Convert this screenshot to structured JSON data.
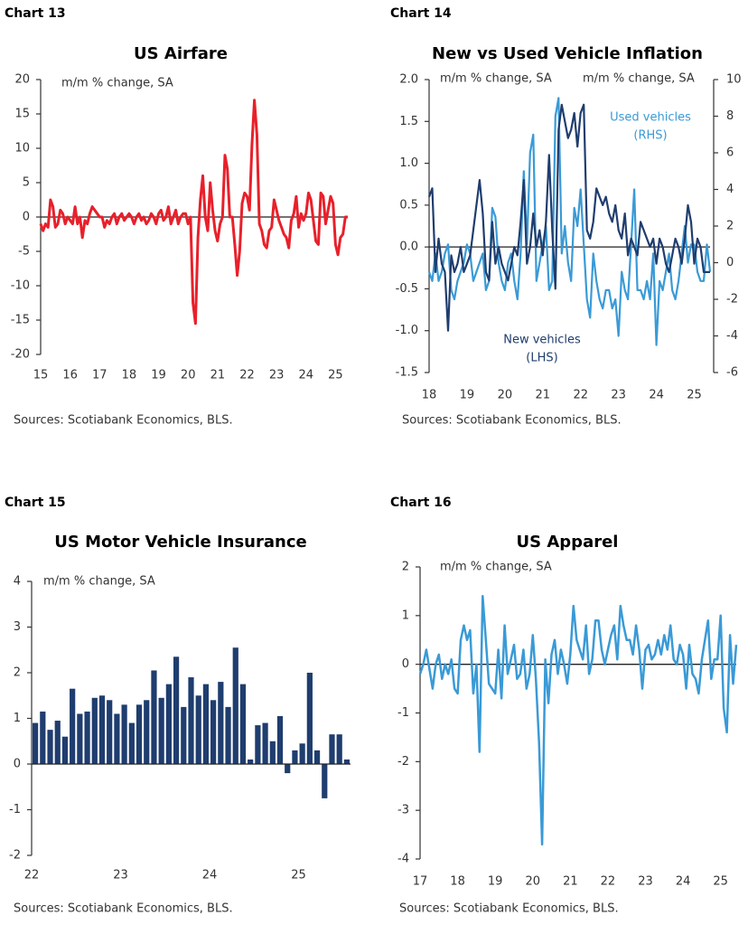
{
  "chart_data": [
    {
      "type": "line",
      "chart_label": "Chart 13",
      "title": "US Airfare",
      "y_label": "m/m % change, SA",
      "source": "Sources: Scotiabank Economics, BLS.",
      "color": "#e8202a",
      "ylim": [
        -20,
        20
      ],
      "yticks": [
        -20,
        -15,
        -10,
        -5,
        0,
        5,
        10,
        15,
        20
      ],
      "categories": [
        "15",
        null,
        null,
        null,
        null,
        null,
        null,
        null,
        null,
        null,
        null,
        null,
        "16",
        null,
        null,
        null,
        null,
        null,
        null,
        null,
        null,
        null,
        null,
        null,
        "17",
        null,
        null,
        null,
        null,
        null,
        null,
        null,
        null,
        null,
        null,
        null,
        "18",
        null,
        null,
        null,
        null,
        null,
        null,
        null,
        null,
        null,
        null,
        null,
        "19",
        null,
        null,
        null,
        null,
        null,
        null,
        null,
        null,
        null,
        null,
        null,
        "20",
        null,
        null,
        null,
        null,
        null,
        null,
        null,
        null,
        null,
        null,
        null,
        "21",
        null,
        null,
        null,
        null,
        null,
        null,
        null,
        null,
        null,
        null,
        null,
        "22",
        null,
        null,
        null,
        null,
        null,
        null,
        null,
        null,
        null,
        null,
        null,
        "23",
        null,
        null,
        null,
        null,
        null,
        null,
        null,
        null,
        null,
        null,
        null,
        "24",
        null,
        null,
        null,
        null,
        null,
        null,
        null,
        null,
        null,
        null,
        null,
        "25",
        null,
        null,
        null,
        null,
        null
      ],
      "values": [
        -1,
        -2,
        -1,
        -1.5,
        2.5,
        1.5,
        -1.5,
        -1,
        1,
        0.5,
        -1,
        0,
        -0.5,
        -1,
        1.5,
        -1,
        0,
        -3,
        -0.5,
        -1,
        0.5,
        1.5,
        1,
        0.5,
        0,
        0,
        -1.5,
        -0.5,
        -1,
        0,
        0.5,
        -1,
        0,
        0.5,
        -0.5,
        0,
        0.5,
        0,
        -1,
        0,
        0.5,
        -0.5,
        0,
        -1,
        -0.5,
        0.5,
        0,
        -1,
        0.5,
        1,
        -0.5,
        0,
        1.5,
        -1,
        0,
        1,
        -1,
        0,
        0.5,
        0.5,
        -1,
        0,
        -12.5,
        -15.5,
        -3,
        2.5,
        6,
        0,
        -2,
        5,
        1,
        -2,
        -3.5,
        -1,
        0,
        9,
        7,
        0,
        0,
        -4,
        -8.5,
        -5,
        2,
        3.5,
        3,
        1,
        10.5,
        17,
        12,
        -1,
        -2,
        -4,
        -4.5,
        -2,
        -1.5,
        2.5,
        1,
        -0.5,
        -1.5,
        -2.5,
        -3,
        -4.5,
        -0.5,
        0.5,
        3,
        -1.5,
        0.5,
        -0.5,
        0.5,
        3.5,
        2.5,
        -0.5,
        -3.5,
        -4,
        3.5,
        3,
        -1,
        1,
        3,
        2,
        -4,
        -5.5,
        -3,
        -2.5,
        0,
        0
      ]
    },
    {
      "type": "line",
      "chart_label": "Chart 14",
      "title": "New vs Used Vehicle Inflation",
      "y_label": "m/m % change, SA",
      "y2_label": "m/m % change, SA",
      "source": "Sources: Scotiabank Economics, BLS.",
      "ylim": [
        -1.5,
        2
      ],
      "yticks": [
        -1.5,
        -0.5,
        {
          "value": -1,
          "label": "-1.0"
        },
        {
          "value": 0,
          "label": "0.0"
        },
        0.5,
        {
          "value": 1,
          "label": "1.0"
        },
        1.5,
        {
          "value": 2,
          "label": "2.0"
        }
      ],
      "y2lim": [
        -6,
        10
      ],
      "y2ticks": [
        -6,
        -4,
        -2,
        0,
        2,
        4,
        6,
        8,
        10
      ],
      "categories": [
        "18",
        null,
        null,
        null,
        null,
        null,
        null,
        null,
        null,
        null,
        null,
        null,
        "19",
        null,
        null,
        null,
        null,
        null,
        null,
        null,
        null,
        null,
        null,
        null,
        "20",
        null,
        null,
        null,
        null,
        null,
        null,
        null,
        null,
        null,
        null,
        null,
        "21",
        null,
        null,
        null,
        null,
        null,
        null,
        null,
        null,
        null,
        null,
        null,
        "22",
        null,
        null,
        null,
        null,
        null,
        null,
        null,
        null,
        null,
        null,
        null,
        "23",
        null,
        null,
        null,
        null,
        null,
        null,
        null,
        null,
        null,
        null,
        null,
        "24",
        null,
        null,
        null,
        null,
        null,
        null,
        null,
        null,
        null,
        null,
        null,
        "25",
        null,
        null,
        null,
        null,
        null
      ],
      "series": [
        {
          "name": "Used vehicles",
          "axis_note": "(RHS)",
          "axis": "y2",
          "color": "#3a9ad6",
          "values": [
            -0.5,
            -1,
            0.5,
            -1,
            -0.5,
            0.5,
            1,
            -1.5,
            -2,
            -1,
            -0.5,
            0,
            1,
            0.5,
            -1,
            -0.5,
            0,
            0.5,
            -1.5,
            -1,
            3,
            2.5,
            0,
            -1,
            -1.5,
            0,
            0.5,
            -1,
            -2,
            0.5,
            5,
            1,
            6,
            7,
            -1,
            0,
            1,
            2,
            -1.5,
            -1,
            8,
            9,
            0.5,
            2,
            0,
            -1,
            3,
            2,
            4,
            1,
            -2,
            -3,
            0.5,
            -1,
            -2,
            -2.5,
            -1.5,
            -1.5,
            -2.5,
            -2,
            -4,
            -0.5,
            -1.5,
            -2,
            1,
            4,
            -1.5,
            -1.5,
            -2,
            -1,
            -2,
            0.5,
            -4.5,
            -1,
            -1.5,
            -0.5,
            0.5,
            -1.5,
            -2,
            -1,
            0.5,
            2,
            0,
            1,
            1,
            -0.5,
            -1,
            -1,
            1,
            -0.5
          ]
        },
        {
          "name": "New vehicles",
          "axis_note": "(LHS)",
          "color": "#1f3d6e",
          "values": [
            0.6,
            0.7,
            -0.3,
            0.1,
            -0.2,
            -0.3,
            -1,
            -0.1,
            -0.3,
            -0.2,
            0,
            -0.3,
            -0.2,
            -0.1,
            0.2,
            0.5,
            0.8,
            0.4,
            -0.3,
            -0.4,
            0.3,
            -0.2,
            0,
            -0.2,
            -0.3,
            -0.4,
            -0.2,
            0,
            -0.1,
            0.3,
            0.8,
            -0.2,
            0,
            0.4,
            0,
            0.2,
            -0.1,
            0.3,
            1.1,
            0.2,
            -0.5,
            1.4,
            1.7,
            1.5,
            1.3,
            1.4,
            1.6,
            1.2,
            1.6,
            1.7,
            0.2,
            0.1,
            0.3,
            0.7,
            0.6,
            0.5,
            0.6,
            0.4,
            0.3,
            0.5,
            0.2,
            0.1,
            0.4,
            -0.1,
            0.1,
            0,
            -0.1,
            0.3,
            0.2,
            0.1,
            0,
            0.1,
            -0.2,
            0.1,
            0,
            -0.2,
            -0.3,
            -0.1,
            0.1,
            0,
            -0.2,
            0.1,
            0.5,
            0.3,
            -0.2,
            0.1,
            0,
            -0.3,
            -0.3,
            -0.3
          ]
        }
      ]
    },
    {
      "type": "bar",
      "chart_label": "Chart 15",
      "title": "US Motor Vehicle Insurance",
      "y_label": "m/m % change, SA",
      "source": "Sources: Scotiabank Economics, BLS.",
      "color": "#1f3d6e",
      "ylim": [
        -2,
        4
      ],
      "yticks": [
        -2,
        -1,
        0,
        1,
        2,
        3,
        4
      ],
      "categories": [
        "22",
        null,
        null,
        null,
        null,
        null,
        null,
        null,
        null,
        null,
        null,
        null,
        "23",
        null,
        null,
        null,
        null,
        null,
        null,
        null,
        null,
        null,
        null,
        null,
        "24",
        null,
        null,
        null,
        null,
        null,
        null,
        null,
        null,
        null,
        null,
        null,
        "25",
        null,
        null,
        null,
        null,
        null,
        null
      ],
      "values": [
        0.9,
        1.15,
        0.75,
        0.95,
        0.6,
        1.65,
        1.1,
        1.15,
        1.45,
        1.5,
        1.4,
        1.1,
        1.3,
        0.9,
        1.3,
        1.4,
        2.05,
        1.45,
        1.75,
        2.35,
        1.25,
        1.9,
        1.5,
        1.75,
        1.4,
        1.8,
        1.25,
        2.55,
        1.75,
        0.1,
        0.85,
        0.9,
        0.5,
        1.05,
        -0.2,
        0.3,
        0.45,
        2,
        0.3,
        -0.75,
        0.65,
        0.65,
        0.1
      ]
    },
    {
      "type": "line",
      "chart_label": "Chart 16",
      "title": "US Apparel",
      "y_label": "m/m % change, SA",
      "source": "Sources: Scotiabank Economics, BLS.",
      "color": "#3a9ad6",
      "ylim": [
        -4,
        2
      ],
      "yticks": [
        -4,
        -3,
        -2,
        -1,
        0,
        1,
        2
      ],
      "categories": [
        "17",
        null,
        null,
        null,
        null,
        null,
        null,
        null,
        null,
        null,
        null,
        null,
        "18",
        null,
        null,
        null,
        null,
        null,
        null,
        null,
        null,
        null,
        null,
        null,
        "19",
        null,
        null,
        null,
        null,
        null,
        null,
        null,
        null,
        null,
        null,
        null,
        "20",
        null,
        null,
        null,
        null,
        null,
        null,
        null,
        null,
        null,
        null,
        null,
        "21",
        null,
        null,
        null,
        null,
        null,
        null,
        null,
        null,
        null,
        null,
        null,
        "22",
        null,
        null,
        null,
        null,
        null,
        null,
        null,
        null,
        null,
        null,
        null,
        "23",
        null,
        null,
        null,
        null,
        null,
        null,
        null,
        null,
        null,
        null,
        null,
        "24",
        null,
        null,
        null,
        null,
        null,
        null,
        null,
        null,
        null,
        null,
        null,
        "25",
        null,
        null,
        null,
        null,
        null
      ],
      "values": [
        -0.2,
        0,
        0.3,
        -0.1,
        -0.5,
        0,
        0.2,
        -0.3,
        0,
        -0.2,
        0.1,
        -0.5,
        -0.6,
        0.5,
        0.8,
        0.5,
        0.7,
        -0.6,
        0,
        -1.8,
        1.4,
        0.5,
        -0.4,
        -0.5,
        -0.6,
        0.3,
        -0.7,
        0.8,
        -0.2,
        0.1,
        0.4,
        -0.3,
        -0.2,
        0.3,
        -0.5,
        -0.2,
        0.6,
        -0.3,
        -1.6,
        -3.7,
        0.1,
        -0.8,
        0.2,
        0.5,
        -0.2,
        0.3,
        0,
        -0.4,
        0.2,
        1.2,
        0.5,
        0.3,
        0.1,
        0.8,
        -0.2,
        0.1,
        0.9,
        0.9,
        0.3,
        0,
        0.3,
        0.6,
        0.8,
        0.1,
        1.2,
        0.8,
        0.5,
        0.5,
        0.2,
        0.8,
        0.3,
        -0.5,
        0.3,
        0.4,
        0.1,
        0.2,
        0.5,
        0.2,
        0.6,
        0.3,
        0.8,
        0.1,
        0,
        0.4,
        0.2,
        -0.5,
        0.4,
        -0.2,
        -0.3,
        -0.6,
        0.1,
        0.5,
        0.9,
        -0.3,
        0.1,
        0.1,
        1,
        -0.9,
        -1.4,
        0.6,
        -0.4,
        0.4
      ]
    }
  ]
}
